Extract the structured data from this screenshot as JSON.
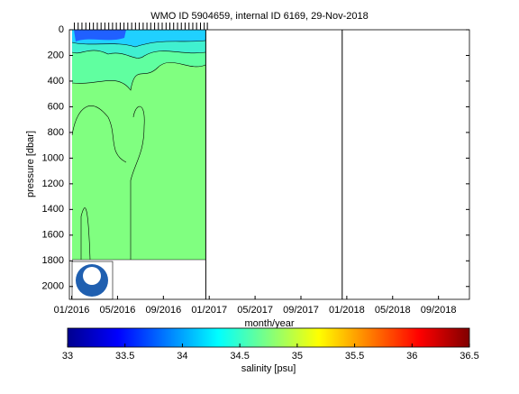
{
  "chart_data": {
    "type": "contour",
    "title": "WMO ID 5904659, internal ID 6169, 29-Nov-2018",
    "xlabel": "month/year",
    "ylabel": "pressure [dbar]",
    "xlim": [
      -0.2,
      34.7
    ],
    "xticks": [
      {
        "value": 0,
        "label": "01/2016"
      },
      {
        "value": 4,
        "label": "05/2016"
      },
      {
        "value": 8,
        "label": "09/2016"
      },
      {
        "value": 12,
        "label": "01/2017"
      },
      {
        "value": 16,
        "label": "05/2017"
      },
      {
        "value": 20,
        "label": "09/2017"
      },
      {
        "value": 24,
        "label": "01/2018"
      },
      {
        "value": 28,
        "label": "05/2018"
      },
      {
        "value": 32,
        "label": "09/2018"
      }
    ],
    "ylim": [
      0,
      2100
    ],
    "y_reversed": true,
    "yticks": [
      0,
      200,
      400,
      600,
      800,
      1000,
      1200,
      1400,
      1600,
      1800,
      2000
    ],
    "separators": [
      11.7,
      23.6
    ],
    "profiles": [
      0,
      0.33,
      0.66,
      1,
      1.33,
      1.66,
      2,
      2.33,
      2.66,
      3,
      3.33,
      3.66,
      4,
      4.33,
      4.66,
      5,
      5.33,
      5.66,
      6,
      6.33,
      6.66,
      7,
      7.33,
      7.66,
      8,
      8.33,
      8.66,
      9,
      9.33,
      9.66,
      10,
      10.33,
      10.66,
      11,
      11.33,
      11.6
    ],
    "colorbar": {
      "label": "salinity [psu]",
      "lim": [
        33,
        36.5
      ],
      "ticks": [
        33,
        33.5,
        34,
        34.5,
        35,
        35.5,
        36,
        36.5
      ]
    }
  }
}
